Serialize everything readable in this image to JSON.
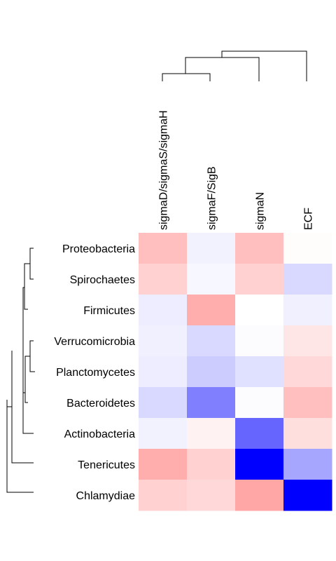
{
  "chart_data": {
    "type": "heatmap",
    "rows": [
      "Proteobacteria",
      "Spirochaetes",
      "Firmicutes",
      "Verrucomicrobia",
      "Planctomycetes",
      "Bacteroidetes",
      "Actinobacteria",
      "Tenericutes",
      "Chlamydiae"
    ],
    "columns": [
      "sigmaD/sigmaS/sigmaH",
      "sigmaF/SigB",
      "sigmaN",
      "ECF"
    ],
    "values": [
      [
        0.25,
        -0.05,
        0.25,
        0.01
      ],
      [
        0.18,
        -0.03,
        0.18,
        -0.15
      ],
      [
        -0.07,
        0.32,
        0.0,
        -0.06
      ],
      [
        -0.06,
        -0.15,
        -0.01,
        0.1
      ],
      [
        -0.07,
        -0.2,
        -0.12,
        0.15
      ],
      [
        -0.15,
        -0.5,
        -0.01,
        0.25
      ],
      [
        -0.05,
        0.05,
        -0.6,
        0.13
      ],
      [
        0.32,
        0.18,
        -1.0,
        -0.35
      ],
      [
        0.18,
        0.15,
        0.35,
        -1.0
      ]
    ],
    "color_scale": {
      "min": -1,
      "max": 1,
      "low": "#0000ff",
      "mid": "#ffffff",
      "high": "#ff0000"
    },
    "legend": "none",
    "dendrograms": {
      "rows": true,
      "columns": true
    }
  }
}
